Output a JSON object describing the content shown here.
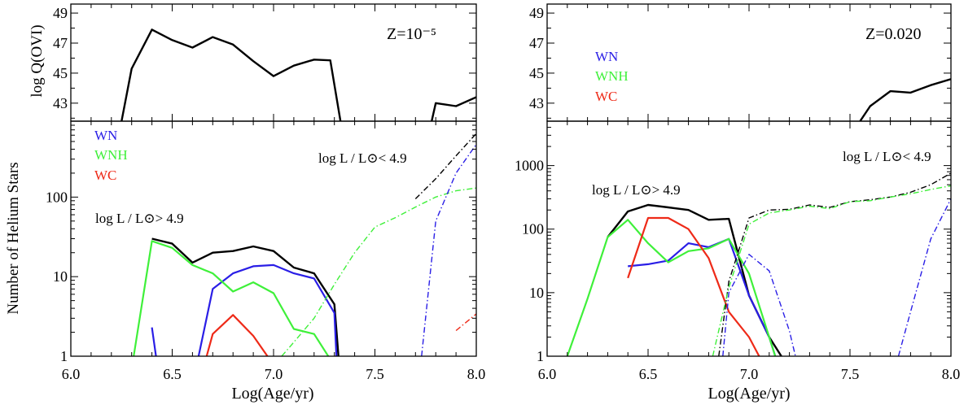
{
  "figure": {
    "xlabel": "Log(Age/yr)",
    "ylabel_top": "log Q(OVI)",
    "ylabel_bottom": "Number of Helium Stars",
    "annotation_high": "log L / L⊙> 4.9",
    "annotation_low": "log L / L⊙< 4.9"
  },
  "colors": {
    "total": "#000000",
    "WN": "#2a1ee6",
    "WNH": "#3ff03a",
    "WC": "#ee2a18"
  },
  "legend": [
    "WN",
    "WNH",
    "WC"
  ],
  "chart_data": [
    {
      "type": "line",
      "panel": "left-top",
      "label": "Z=10⁻⁵",
      "ylabel": "log Q(OVI)",
      "xlim": [
        6.0,
        8.0
      ],
      "ylim": [
        41.8,
        49.6
      ],
      "yticks": [
        43,
        45,
        47,
        49
      ],
      "series": [
        {
          "color": "black",
          "style": "solid",
          "x": [
            6.25,
            6.3,
            6.4,
            6.5,
            6.6,
            6.7,
            6.8,
            6.9,
            7.0,
            7.1,
            7.2,
            7.28,
            7.33
          ],
          "y": [
            41.8,
            45.3,
            47.9,
            47.2,
            46.7,
            47.4,
            46.9,
            45.8,
            44.8,
            45.5,
            45.9,
            45.85,
            41.8
          ]
        },
        {
          "color": "black",
          "style": "solid",
          "x": [
            7.78,
            7.8,
            7.9,
            8.0
          ],
          "y": [
            41.8,
            43.0,
            42.8,
            43.4
          ]
        }
      ]
    },
    {
      "type": "line",
      "panel": "left-bottom",
      "ylabel": "Number of Helium Stars",
      "xlabel": "Log(Age/yr)",
      "yscale": "log",
      "xlim": [
        6.0,
        8.0
      ],
      "ylim": [
        1,
        900
      ],
      "xticks": [
        6.0,
        6.5,
        7.0,
        7.5,
        8.0
      ],
      "yticks": [
        1,
        10,
        100
      ],
      "annotations": [
        "log L / L⊙< 4.9",
        "log L / L⊙> 4.9"
      ],
      "series": [
        {
          "name": "total",
          "group": "high",
          "color": "black",
          "style": "solid",
          "x": [
            6.4,
            6.5,
            6.6,
            6.7,
            6.8,
            6.9,
            7.0,
            7.1,
            7.2,
            7.3,
            7.32
          ],
          "y": [
            30,
            26,
            15,
            20,
            21,
            24,
            21,
            13,
            11,
            4.5,
            1
          ]
        },
        {
          "name": "WN",
          "group": "high",
          "color": "blue",
          "style": "solid",
          "x": [
            6.4,
            6.42
          ],
          "y": [
            2.3,
            1
          ]
        },
        {
          "name": "WN",
          "group": "high",
          "color": "blue",
          "style": "solid",
          "x": [
            6.63,
            6.7,
            6.8,
            6.9,
            7.0,
            7.1,
            7.2,
            7.3,
            7.31
          ],
          "y": [
            1,
            7,
            11,
            13.5,
            14,
            11,
            9.5,
            3.5,
            1
          ]
        },
        {
          "name": "WNH",
          "group": "high",
          "color": "green",
          "style": "solid",
          "x": [
            6.31,
            6.4,
            6.5,
            6.6,
            6.7,
            6.8,
            6.9,
            7.0,
            7.1,
            7.2,
            7.27
          ],
          "y": [
            1,
            28,
            23,
            14,
            11,
            6.5,
            8.5,
            6.2,
            2.2,
            1.9,
            1
          ]
        },
        {
          "name": "WC",
          "group": "high",
          "color": "red",
          "style": "solid",
          "x": [
            6.67,
            6.7,
            6.8,
            6.9,
            6.97
          ],
          "y": [
            1,
            1.9,
            3.3,
            1.8,
            1
          ]
        },
        {
          "name": "total",
          "group": "low",
          "color": "black",
          "style": "dashdot",
          "x": [
            7.7,
            7.8,
            7.9,
            8.0
          ],
          "y": [
            95,
            170,
            330,
            630
          ]
        },
        {
          "name": "WNH",
          "group": "low",
          "color": "green",
          "style": "dashdot",
          "x": [
            7.04,
            7.1,
            7.2,
            7.3,
            7.4,
            7.5,
            7.6,
            7.7,
            7.8,
            7.9,
            8.0
          ],
          "y": [
            1,
            1.5,
            3,
            8,
            20,
            42,
            55,
            75,
            100,
            120,
            130
          ]
        },
        {
          "name": "WN",
          "group": "low",
          "color": "blue",
          "style": "dashdot",
          "x": [
            7.73,
            7.8,
            7.9,
            8.0
          ],
          "y": [
            1,
            50,
            200,
            460
          ]
        },
        {
          "name": "WC",
          "group": "low",
          "color": "red",
          "style": "dashdot",
          "x": [
            7.9,
            8.0
          ],
          "y": [
            2.1,
            3.4
          ]
        }
      ]
    },
    {
      "type": "line",
      "panel": "right-top",
      "label": "Z=0.020",
      "ylabel": "",
      "xlim": [
        6.0,
        8.0
      ],
      "ylim": [
        41.8,
        49.6
      ],
      "yticks": [
        43,
        45,
        47,
        49
      ],
      "series": [
        {
          "color": "black",
          "style": "solid",
          "x": [
            7.55,
            7.6,
            7.7,
            7.8,
            7.9,
            8.0
          ],
          "y": [
            41.8,
            42.8,
            43.8,
            43.7,
            44.2,
            44.6
          ]
        }
      ]
    },
    {
      "type": "line",
      "panel": "right-bottom",
      "xlabel": "Log(Age/yr)",
      "yscale": "log",
      "xlim": [
        6.0,
        8.0
      ],
      "ylim": [
        1,
        5000
      ],
      "xticks": [
        6.0,
        6.5,
        7.0,
        7.5,
        8.0
      ],
      "yticks": [
        1,
        10,
        100,
        1000
      ],
      "annotations": [
        "log L / L⊙< 4.9",
        "log L / L⊙> 4.9"
      ],
      "series": [
        {
          "name": "total",
          "group": "high",
          "color": "black",
          "style": "solid",
          "x": [
            6.3,
            6.4,
            6.5,
            6.6,
            6.7,
            6.8,
            6.9,
            7.0,
            7.1,
            7.16
          ],
          "y": [
            75,
            190,
            240,
            220,
            200,
            140,
            145,
            9,
            2,
            1
          ]
        },
        {
          "name": "WN",
          "group": "high",
          "color": "blue",
          "style": "solid",
          "x": [
            6.4,
            6.5,
            6.6,
            6.7,
            6.8,
            6.9,
            7.0,
            7.1,
            7.13
          ],
          "y": [
            26,
            28,
            32,
            60,
            52,
            70,
            9,
            2,
            1
          ]
        },
        {
          "name": "WNH",
          "group": "high",
          "color": "green",
          "style": "solid",
          "x": [
            6.1,
            6.2,
            6.3,
            6.4,
            6.5,
            6.6,
            6.7,
            6.8,
            6.9,
            7.0,
            7.13
          ],
          "y": [
            1,
            8,
            75,
            140,
            60,
            30,
            45,
            50,
            70,
            20,
            1
          ]
        },
        {
          "name": "WC",
          "group": "high",
          "color": "red",
          "style": "solid",
          "x": [
            6.4,
            6.5,
            6.6,
            6.7,
            6.8,
            6.9,
            7.0,
            7.05
          ],
          "y": [
            17,
            150,
            150,
            100,
            35,
            5,
            2,
            1
          ]
        },
        {
          "name": "total",
          "group": "low",
          "color": "black",
          "style": "dashdot",
          "x": [
            6.85,
            6.9,
            7.0,
            7.1,
            7.2,
            7.3,
            7.4,
            7.5,
            7.6,
            7.7,
            7.8,
            7.9,
            8.0
          ],
          "y": [
            1,
            15,
            150,
            200,
            205,
            240,
            220,
            270,
            290,
            320,
            380,
            500,
            760
          ]
        },
        {
          "name": "WNH",
          "group": "low",
          "color": "green",
          "style": "dashdot",
          "x": [
            6.82,
            6.9,
            7.0,
            7.1,
            7.2,
            7.3,
            7.4,
            7.5,
            7.6,
            7.7,
            7.8,
            7.9,
            8.0
          ],
          "y": [
            1,
            12,
            120,
            180,
            200,
            230,
            210,
            270,
            280,
            320,
            360,
            420,
            480
          ]
        },
        {
          "name": "WN",
          "group": "low",
          "color": "blue",
          "style": "dashdot",
          "x": [
            6.87,
            6.9,
            7.0,
            7.1,
            7.2,
            7.23
          ],
          "y": [
            1,
            10,
            40,
            22,
            2.5,
            1
          ]
        },
        {
          "name": "WN",
          "group": "low",
          "color": "blue",
          "style": "dashdot",
          "x": [
            7.74,
            7.8,
            7.9,
            8.0
          ],
          "y": [
            1,
            5,
            70,
            300
          ]
        }
      ]
    }
  ]
}
